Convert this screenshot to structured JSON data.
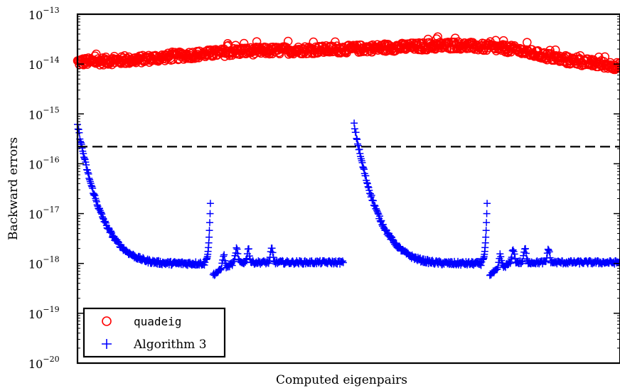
{
  "chart_data": {
    "type": "scatter",
    "title": "",
    "xlabel": "Computed eigenpairs",
    "ylabel": "Backward errors",
    "yscale": "log",
    "ylim": [
      1e-20,
      1e-13
    ],
    "xlim": [
      0,
      1
    ],
    "xticks_visible": false,
    "grid": false,
    "legend_position": "bottom-left",
    "ytick_labels": [
      {
        "base": "10",
        "exp": "−13",
        "value_exp": -13
      },
      {
        "base": "10",
        "exp": "−14",
        "value_exp": -14
      },
      {
        "base": "10",
        "exp": "−15",
        "value_exp": -15
      },
      {
        "base": "10",
        "exp": "−16",
        "value_exp": -16
      },
      {
        "base": "10",
        "exp": "−17",
        "value_exp": -17
      },
      {
        "base": "10",
        "exp": "−18",
        "value_exp": -18
      },
      {
        "base": "10",
        "exp": "−19",
        "value_exp": -19
      },
      {
        "base": "10",
        "exp": "−20",
        "value_exp": -20
      }
    ],
    "reference_line": {
      "y": 2.2e-16,
      "style": "dashed",
      "color": "#000000"
    },
    "series": [
      {
        "name": "quadeig",
        "marker": "circle",
        "color": "#ff0000",
        "x": [
          0.0,
          0.1,
          0.2,
          0.3,
          0.4,
          0.5,
          0.6,
          0.7,
          0.8,
          0.9,
          1.0
        ],
        "y": [
          1.1e-14,
          1.2e-14,
          1.5e-14,
          1.8e-14,
          1.9e-14,
          2e-14,
          2.2e-14,
          2.4e-14,
          2e-14,
          1.2e-14,
          9e-15
        ]
      },
      {
        "name": "Algorithm 3",
        "marker": "plus",
        "color": "#0000ff",
        "x": [
          0.0,
          0.01,
          0.05,
          0.1,
          0.15,
          0.2,
          0.235,
          0.245,
          0.25,
          0.3,
          0.35,
          0.4,
          0.45,
          0.5,
          0.51,
          0.55,
          0.6,
          0.65,
          0.7,
          0.745,
          0.755,
          0.76,
          0.8,
          0.85,
          0.9,
          0.95,
          1.0
        ],
        "y": [
          6e-16,
          1e-16,
          1.2e-17,
          4e-18,
          2e-18,
          1.2e-18,
          1e-18,
          1.6e-17,
          6e-19,
          1e-18,
          1.1e-18,
          1.2e-18,
          1.1e-18,
          1.1e-18,
          6e-16,
          1e-16,
          1.2e-17,
          4e-18,
          2e-18,
          1e-18,
          1.6e-17,
          6e-19,
          1e-18,
          1.1e-18,
          1.2e-18,
          1.1e-18,
          1.1e-18
        ]
      }
    ],
    "legend": [
      {
        "label": "quadeig",
        "marker": "circle",
        "color": "#ff0000"
      },
      {
        "label": "Algorithm 3",
        "marker": "plus",
        "color": "#0000ff"
      }
    ]
  }
}
